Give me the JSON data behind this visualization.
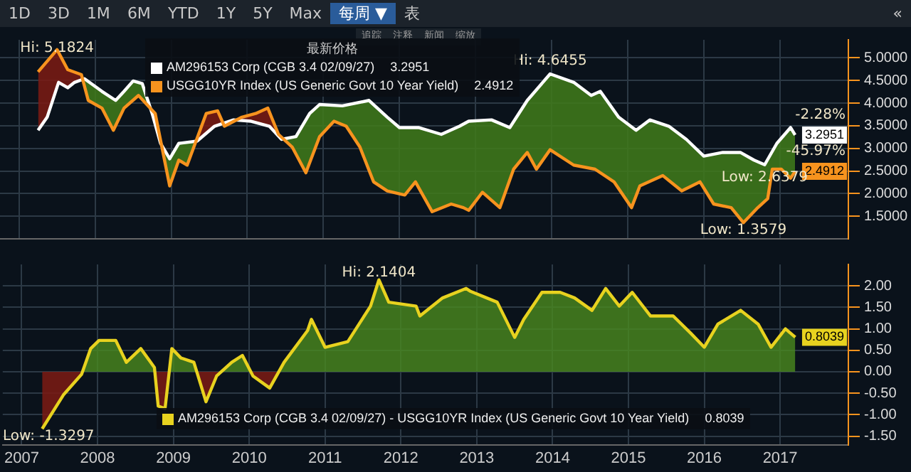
{
  "chart_data": [
    {
      "type": "line",
      "legend_title": "最新价格",
      "legend": "top left",
      "tick_labels": "y",
      "grid": true,
      "marker": "none",
      "line_style": "solid",
      "annotations": [
        "1D",
        "3D",
        "1M",
        "6M",
        "YTD",
        "1Y",
        "5Y",
        "Max",
        "每周 ▼",
        "表",
        "«",
        "追踪",
        "注释",
        "新闻",
        "缩放",
        {
          "text": "Hi: 5.1824",
          "x": 2007.5,
          "y": 5.1824
        },
        {
          "text": "Hi: 4.6455",
          "x": 2013.98,
          "y": 4.6455
        },
        {
          "text": "Low: 2.6379",
          "x": 2016.8,
          "y": 2.6379
        },
        {
          "text": "Low: 1.3579",
          "x": 2016.52,
          "y": 1.3579
        },
        {
          "text": "-2.28%",
          "x": 2017.2,
          "y": 3.2951
        },
        {
          "text": "-45.97%",
          "x": 2017.2,
          "y": 2.4912
        }
      ],
      "xlim": [
        2006.75,
        2017.9
      ],
      "xticks": [
        2007,
        2008,
        2009,
        2010,
        2011,
        2012,
        2013,
        2014,
        2015,
        2016,
        2017
      ],
      "ylim": [
        1.0,
        5.4
      ],
      "yticks": [
        {
          "value": 1.5,
          "label": "1.5000"
        },
        {
          "value": 2,
          "label": "2.0000"
        },
        {
          "value": 2.5,
          "label": "2.5000"
        },
        {
          "value": 3,
          "label": "3.0000"
        },
        {
          "value": 3.5,
          "label": "3.5000"
        },
        {
          "value": 4,
          "label": "4.0000"
        },
        {
          "value": 4.5,
          "label": "4.5000"
        },
        {
          "value": 5,
          "label": "5.0000"
        }
      ],
      "series": [
        {
          "name": "AM296153 Corp (CGB 3.4 02/09/27)",
          "color": "#ffffff",
          "x": [
            2007.25,
            2007.37,
            2007.52,
            2007.64,
            2007.73,
            2007.86,
            2008.09,
            2008.27,
            2008.38,
            2008.5,
            2008.62,
            2008.75,
            2008.86,
            2008.98,
            2009.1,
            2009.34,
            2009.57,
            2009.82,
            2010.05,
            2010.29,
            2010.45,
            2010.64,
            2010.82,
            2010.95,
            2011.25,
            2011.6,
            2011.84,
            2012.0,
            2012.25,
            2012.55,
            2012.79,
            2012.91,
            2013.21,
            2013.45,
            2013.68,
            2013.98,
            2014.29,
            2014.52,
            2014.64,
            2014.88,
            2015.11,
            2015.29,
            2015.54,
            2015.77,
            2016.0,
            2016.25,
            2016.48,
            2016.66,
            2016.8,
            2016.96,
            2017.14,
            2017.2
          ],
          "values": [
            3.4,
            3.69,
            4.46,
            4.34,
            4.46,
            4.54,
            4.26,
            4.06,
            4.26,
            4.49,
            4.43,
            3.77,
            3.11,
            2.77,
            3.11,
            3.16,
            3.49,
            3.63,
            3.6,
            3.49,
            3.2,
            3.26,
            3.77,
            3.97,
            3.94,
            4.06,
            3.69,
            3.46,
            3.46,
            3.31,
            3.49,
            3.6,
            3.63,
            3.46,
            4.06,
            4.6455,
            4.46,
            4.17,
            4.26,
            3.69,
            3.4,
            3.63,
            3.49,
            3.2,
            2.83,
            2.91,
            2.91,
            2.74,
            2.6379,
            3.11,
            3.46,
            3.2951
          ],
          "value_labels": [
            null,
            null,
            null,
            null,
            null,
            null,
            null,
            null,
            null,
            null,
            null,
            null,
            null,
            null,
            null,
            null,
            null,
            null,
            null,
            null,
            null,
            null,
            null,
            null,
            null,
            null,
            null,
            null,
            null,
            null,
            null,
            null,
            null,
            null,
            null,
            null,
            null,
            null,
            null,
            null,
            null,
            null,
            null,
            null,
            null,
            null,
            null,
            null,
            null,
            null,
            null,
            "3.2951"
          ]
        },
        {
          "name": "USGG10YR Index (US Generic Govt 10 Year Yield)",
          "color": "#f7931e",
          "x": [
            2007.25,
            2007.5,
            2007.64,
            2007.82,
            2007.91,
            2008.09,
            2008.24,
            2008.38,
            2008.57,
            2008.68,
            2008.79,
            2008.98,
            2009.1,
            2009.21,
            2009.46,
            2009.61,
            2009.7,
            2009.93,
            2010.11,
            2010.27,
            2010.41,
            2010.59,
            2010.77,
            2010.95,
            2011.14,
            2011.3,
            2011.48,
            2011.66,
            2011.84,
            2012.07,
            2012.21,
            2012.43,
            2012.68,
            2012.84,
            2012.91,
            2013.09,
            2013.32,
            2013.5,
            2013.68,
            2013.8,
            2013.98,
            2014.29,
            2014.57,
            2014.82,
            2015.05,
            2015.16,
            2015.46,
            2015.71,
            2015.95,
            2016.13,
            2016.36,
            2016.52,
            2016.71,
            2016.84,
            2016.9,
            2017.02,
            2017.14,
            2017.2
          ],
          "values": [
            4.69,
            5.1824,
            4.74,
            4.63,
            4.06,
            3.89,
            3.4,
            3.89,
            4.17,
            3.97,
            3.77,
            2.17,
            2.74,
            2.63,
            3.77,
            3.83,
            3.49,
            3.69,
            3.77,
            3.89,
            3.31,
            3.03,
            2.46,
            3.26,
            3.6,
            3.49,
            3.03,
            2.26,
            2.06,
            1.97,
            2.26,
            1.6,
            1.77,
            1.69,
            1.63,
            2.03,
            1.69,
            2.54,
            2.91,
            2.54,
            2.97,
            2.63,
            2.54,
            2.26,
            1.69,
            2.17,
            2.4,
            2.06,
            2.26,
            1.77,
            1.69,
            1.3579,
            1.69,
            1.89,
            2.54,
            2.54,
            2.34,
            2.4912
          ],
          "value_labels": [
            null,
            null,
            null,
            null,
            null,
            null,
            null,
            null,
            null,
            null,
            null,
            null,
            null,
            null,
            null,
            null,
            null,
            null,
            null,
            null,
            null,
            null,
            null,
            null,
            null,
            null,
            null,
            null,
            null,
            null,
            null,
            null,
            null,
            null,
            null,
            null,
            null,
            null,
            null,
            null,
            null,
            null,
            null,
            null,
            null,
            null,
            null,
            null,
            null,
            null,
            null,
            null,
            null,
            null,
            null,
            null,
            null,
            "2.4912"
          ]
        }
      ]
    },
    {
      "type": "line",
      "legend": "bottom",
      "grid": true,
      "marker": "none",
      "line_style": "solid",
      "annotations": [
        {
          "text": "Hi: 2.1404",
          "x": 2011.71,
          "y": 2.1404
        },
        {
          "text": "Low: -1.3297",
          "x": 2007.27,
          "y": -1.3297
        }
      ],
      "xlim": [
        2006.75,
        2017.9
      ],
      "xticks": [
        2007,
        2008,
        2009,
        2010,
        2011,
        2012,
        2013,
        2014,
        2015,
        2016,
        2017
      ],
      "ylim": [
        -1.7,
        2.5
      ],
      "yticks": [
        {
          "value": -1.5,
          "label": "-1.50"
        },
        {
          "value": -1,
          "label": "-1.00"
        },
        {
          "value": -0.5,
          "label": "-0.50"
        },
        {
          "value": 0,
          "label": "0.00"
        },
        {
          "value": 0.5,
          "label": "0.50"
        },
        {
          "value": 1,
          "label": "1.00"
        },
        {
          "value": 1.5,
          "label": "1.50"
        },
        {
          "value": 2,
          "label": "2.00"
        }
      ],
      "series": [
        {
          "name": "AM296153 Corp (CGB 3.4 02/09/27) - USGG10YR Index (US Generic Govt 10 Year Yield)",
          "color": "#e8d21f",
          "x": [
            2007.27,
            2007.55,
            2007.79,
            2007.91,
            2008.02,
            2008.24,
            2008.38,
            2008.57,
            2008.75,
            2008.8,
            2008.89,
            2008.98,
            2009.1,
            2009.27,
            2009.43,
            2009.57,
            2009.77,
            2009.91,
            2010.05,
            2010.27,
            2010.46,
            2010.77,
            2010.82,
            2011.0,
            2011.3,
            2011.6,
            2011.71,
            2011.84,
            2012.2,
            2012.25,
            2012.55,
            2012.86,
            2012.91,
            2013.27,
            2013.5,
            2013.62,
            2013.86,
            2014.1,
            2014.29,
            2014.52,
            2014.7,
            2014.88,
            2015.05,
            2015.29,
            2015.59,
            2015.82,
            2016.0,
            2016.18,
            2016.48,
            2016.71,
            2016.88,
            2017.07,
            2017.2
          ],
          "values": [
            -1.3297,
            -0.54,
            -0.06,
            0.54,
            0.73,
            0.73,
            0.22,
            0.54,
            0.1,
            -0.8,
            -0.86,
            0.54,
            0.32,
            0.22,
            -0.7,
            -0.1,
            0.22,
            0.38,
            -0.1,
            -0.38,
            0.22,
            0.96,
            1.22,
            0.57,
            0.7,
            1.53,
            2.1404,
            1.62,
            1.53,
            1.3,
            1.72,
            1.94,
            1.88,
            1.62,
            0.8,
            1.22,
            1.85,
            1.85,
            1.72,
            1.43,
            1.94,
            1.53,
            1.85,
            1.3,
            1.3,
            0.9,
            0.57,
            1.11,
            1.43,
            1.11,
            0.57,
            1.0,
            0.8039
          ],
          "value_labels": [
            null,
            null,
            null,
            null,
            null,
            null,
            null,
            null,
            null,
            null,
            null,
            null,
            null,
            null,
            null,
            null,
            null,
            null,
            null,
            null,
            null,
            null,
            null,
            null,
            null,
            null,
            null,
            null,
            null,
            null,
            null,
            null,
            null,
            null,
            null,
            null,
            null,
            null,
            null,
            null,
            null,
            null,
            null,
            null,
            null,
            null,
            null,
            null,
            null,
            null,
            null,
            null,
            "0.8039"
          ]
        }
      ]
    }
  ]
}
